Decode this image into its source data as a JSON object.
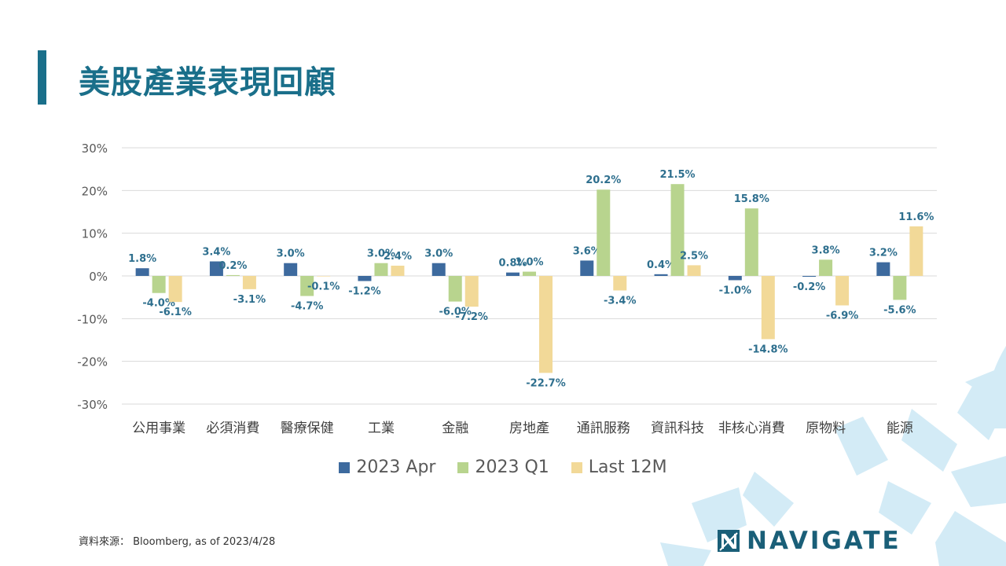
{
  "title": "美股產業表現回顧",
  "source": "資料來源： Bloomberg,  as of 2023/4/28",
  "brand": {
    "name": "NAVIGATE"
  },
  "colors": {
    "accent": "#1a6f8a",
    "series": [
      "#3d6a9e",
      "#b8d48e",
      "#f2d998"
    ],
    "data_label": "#2e6f8e",
    "deco": "#c9e6f3"
  },
  "chart_data": {
    "type": "bar",
    "categories": [
      "公用事業",
      "必須消費",
      "醫療保健",
      "工業",
      "金融",
      "房地產",
      "通訊服務",
      "資訊科技",
      "非核心消費",
      "原物料",
      "能源"
    ],
    "series": [
      {
        "name": "2023 Apr",
        "values": [
          1.8,
          3.4,
          3.0,
          -1.2,
          3.0,
          0.8,
          3.6,
          0.4,
          -1.0,
          -0.2,
          3.2
        ],
        "labels": [
          "1.8%",
          "3.4%",
          "3.0%",
          "-1.2%",
          "3.0%",
          "0.8%",
          "3.6%",
          "0.4%",
          "-1.0%",
          "-0.2%",
          "3.2%"
        ]
      },
      {
        "name": "2023 Q1",
        "values": [
          -4.0,
          0.2,
          -4.7,
          3.0,
          -6.0,
          1.0,
          20.2,
          21.5,
          15.8,
          3.8,
          -5.6
        ],
        "labels": [
          "-4.0%",
          "0.2%",
          "-4.7%",
          "3.0%",
          "-6.0%",
          "1.0%",
          "20.2%",
          "21.5%",
          "15.8%",
          "3.8%",
          "-5.6%"
        ]
      },
      {
        "name": "Last 12M",
        "values": [
          -6.1,
          -3.1,
          -0.1,
          2.4,
          -7.2,
          -22.7,
          -3.4,
          2.5,
          -14.8,
          -6.9,
          11.6
        ],
        "labels": [
          "-6.1%",
          "-3.1%",
          "-0.1%",
          "2.4%",
          "-7.2%",
          "-22.7%",
          "-3.4%",
          "2.5%",
          "-14.8%",
          "-6.9%",
          "11.6%"
        ]
      }
    ],
    "yticks": [
      "30%",
      "20%",
      "10%",
      "0%",
      "-10%",
      "-20%",
      "-30%"
    ],
    "ylim": [
      -30,
      30
    ],
    "grid": true,
    "legend_position": "bottom"
  }
}
